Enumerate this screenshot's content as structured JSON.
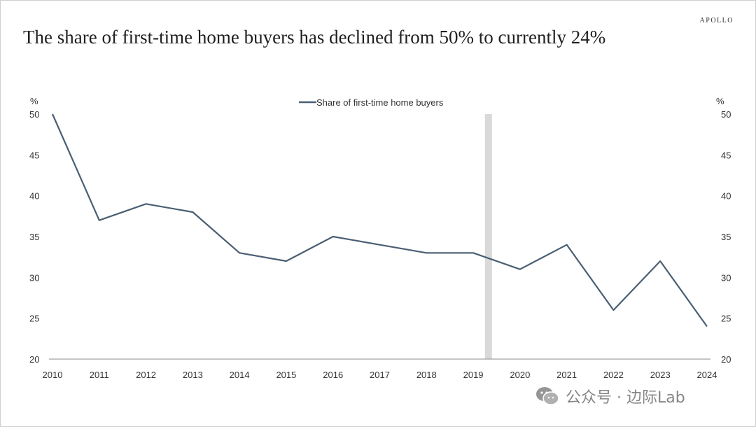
{
  "brand": "APOLLO",
  "title": "The share of first-time home buyers has declined from 50% to currently 24%",
  "watermark": {
    "text": "公众号 · 边际Lab",
    "icon": "wechat-icon"
  },
  "chart_data": {
    "type": "line",
    "title": "The share of first-time home buyers has declined from 50% to currently 24%",
    "x": [
      2010,
      2011,
      2012,
      2013,
      2014,
      2015,
      2016,
      2017,
      2018,
      2019,
      2020,
      2021,
      2022,
      2023,
      2024
    ],
    "series": [
      {
        "name": "Share of first-time home buyers",
        "values": [
          50,
          37,
          39,
          38,
          33,
          32,
          35,
          34,
          33,
          33,
          31,
          34,
          26,
          32,
          24
        ],
        "color": "#4a5f73"
      }
    ],
    "xlim": [
      2010,
      2024
    ],
    "ylim": [
      20,
      50
    ],
    "yticks": [
      20,
      25,
      30,
      35,
      40,
      45,
      50
    ],
    "y_unit_left": "%",
    "y_unit_right": "%",
    "legend_position": "top-center",
    "grid": false,
    "shaded_period": {
      "from": 2019.25,
      "to": 2019.4,
      "color": "#d9d9d9"
    }
  }
}
